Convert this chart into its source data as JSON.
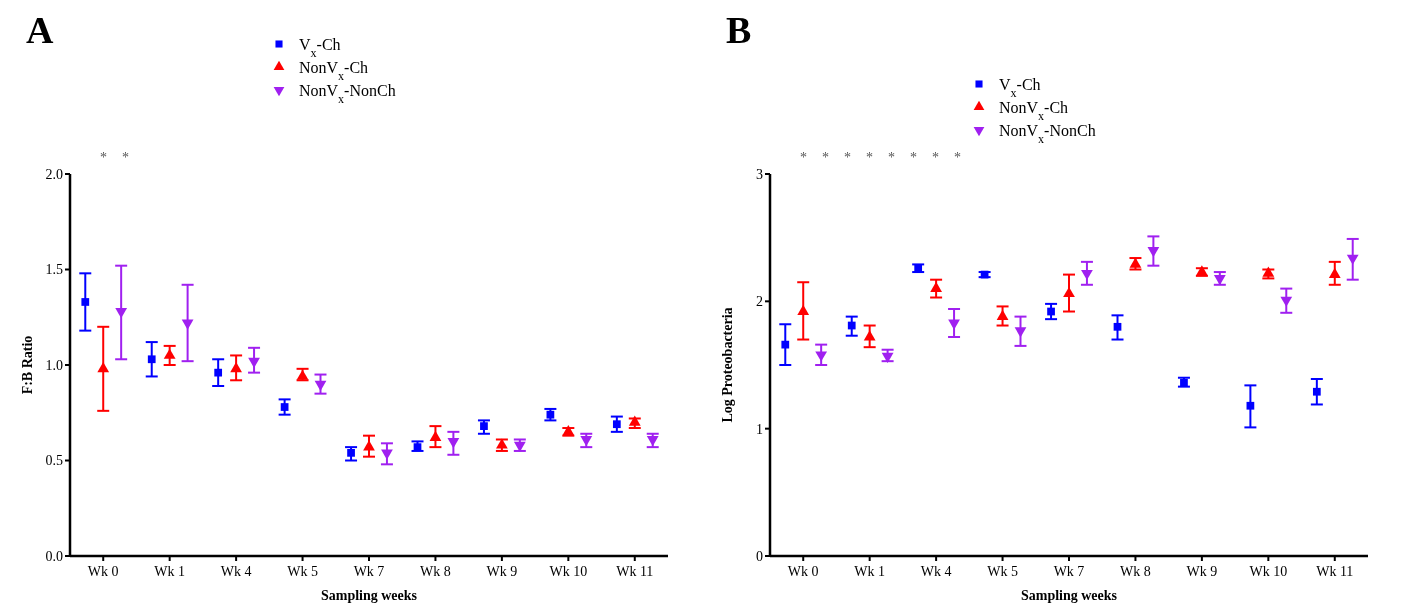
{
  "chart_data": [
    {
      "type": "scatter",
      "title": "A",
      "xlabel": "Sampling weeks",
      "ylabel": "F:B Ratio",
      "categories": [
        "Wk 0",
        "Wk 1",
        "Wk 4",
        "Wk 5",
        "Wk 7",
        "Wk 8",
        "Wk 9",
        "Wk 10",
        "Wk 11"
      ],
      "ylim": [
        0,
        2
      ],
      "yticks": [
        {
          "value": 0,
          "label": "0.0"
        },
        {
          "value": 0.5,
          "label": "0.5"
        },
        {
          "value": 1,
          "label": "1.0"
        },
        {
          "value": 1.5,
          "label": "1.5"
        },
        {
          "value": 2,
          "label": "2.0"
        }
      ],
      "grid": false,
      "legend": "top",
      "series": [
        {
          "name": "V$_{x}$-Ch",
          "color": "#0000ff",
          "marker": "square",
          "values": [
            1.33,
            1.03,
            0.96,
            0.78,
            0.54,
            0.57,
            0.68,
            0.74,
            0.69
          ],
          "errors": [
            [
              1.18,
              1.48
            ],
            [
              0.94,
              1.12
            ],
            [
              0.89,
              1.03
            ],
            [
              0.74,
              0.82
            ],
            [
              0.5,
              0.57
            ],
            [
              0.55,
              0.6
            ],
            [
              0.64,
              0.71
            ],
            [
              0.71,
              0.77
            ],
            [
              0.65,
              0.73
            ]
          ]
        },
        {
          "name": "NonV$_{x}$-Ch",
          "color": "#ff0000",
          "marker": "triangle",
          "values": [
            0.98,
            1.05,
            0.98,
            0.94,
            0.57,
            0.62,
            0.58,
            0.65,
            0.7
          ],
          "errors": [
            [
              0.76,
              1.2
            ],
            [
              1.0,
              1.1
            ],
            [
              0.92,
              1.05
            ],
            [
              0.92,
              0.98
            ],
            [
              0.52,
              0.63
            ],
            [
              0.57,
              0.68
            ],
            [
              0.55,
              0.61
            ],
            [
              0.63,
              0.67
            ],
            [
              0.67,
              0.72
            ]
          ]
        },
        {
          "name": "NonV$_{x}$-NonCh",
          "color": "#a020f0",
          "marker": "triangle-down",
          "values": [
            1.28,
            1.22,
            1.02,
            0.9,
            0.54,
            0.6,
            0.58,
            0.61,
            0.61
          ],
          "errors": [
            [
              1.03,
              1.52
            ],
            [
              1.02,
              1.42
            ],
            [
              0.96,
              1.09
            ],
            [
              0.85,
              0.95
            ],
            [
              0.48,
              0.59
            ],
            [
              0.53,
              0.65
            ],
            [
              0.55,
              0.61
            ],
            [
              0.57,
              0.64
            ],
            [
              0.57,
              0.64
            ]
          ]
        }
      ],
      "annotations": [
        "*",
        "*"
      ]
    },
    {
      "type": "scatter",
      "title": "B",
      "xlabel": "Sampling weeks",
      "ylabel": "Log Proteobacteria",
      "categories": [
        "Wk 0",
        "Wk 1",
        "Wk 4",
        "Wk 5",
        "Wk 7",
        "Wk 8",
        "Wk 9",
        "Wk 10",
        "Wk 11"
      ],
      "ylim": [
        0,
        3
      ],
      "yticks": [
        0,
        1,
        2,
        3
      ],
      "grid": false,
      "legend": "top",
      "series": [
        {
          "name": "V$_{x}$-Ch",
          "color": "#0000ff",
          "marker": "square",
          "values": [
            1.66,
            1.81,
            2.26,
            2.21,
            1.92,
            1.8,
            1.36,
            1.18,
            1.29
          ],
          "errors": [
            [
              1.5,
              1.82
            ],
            [
              1.73,
              1.88
            ],
            [
              2.23,
              2.29
            ],
            [
              2.19,
              2.23
            ],
            [
              1.86,
              1.98
            ],
            [
              1.7,
              1.89
            ],
            [
              1.33,
              1.4
            ],
            [
              1.01,
              1.34
            ],
            [
              1.19,
              1.39
            ]
          ]
        },
        {
          "name": "NonV$_{x}$-Ch",
          "color": "#ff0000",
          "marker": "triangle",
          "values": [
            1.92,
            1.72,
            2.1,
            1.88,
            2.06,
            2.29,
            2.23,
            2.22,
            2.21
          ],
          "errors": [
            [
              1.7,
              2.15
            ],
            [
              1.64,
              1.81
            ],
            [
              2.03,
              2.17
            ],
            [
              1.81,
              1.96
            ],
            [
              1.92,
              2.21
            ],
            [
              2.25,
              2.34
            ],
            [
              2.2,
              2.26
            ],
            [
              2.18,
              2.25
            ],
            [
              2.13,
              2.31
            ]
          ]
        },
        {
          "name": "NonV$_{x}$-NonCh",
          "color": "#a020f0",
          "marker": "triangle-down",
          "values": [
            1.58,
            1.57,
            1.83,
            1.77,
            2.22,
            2.4,
            2.18,
            2.01,
            2.34
          ],
          "errors": [
            [
              1.5,
              1.66
            ],
            [
              1.53,
              1.62
            ],
            [
              1.72,
              1.94
            ],
            [
              1.65,
              1.88
            ],
            [
              2.13,
              2.31
            ],
            [
              2.28,
              2.51
            ],
            [
              2.13,
              2.23
            ],
            [
              1.91,
              2.1
            ],
            [
              2.17,
              2.49
            ]
          ]
        }
      ],
      "annotations": [
        "*",
        "*",
        "*",
        "*",
        "*",
        "*",
        "*",
        "*"
      ]
    }
  ]
}
